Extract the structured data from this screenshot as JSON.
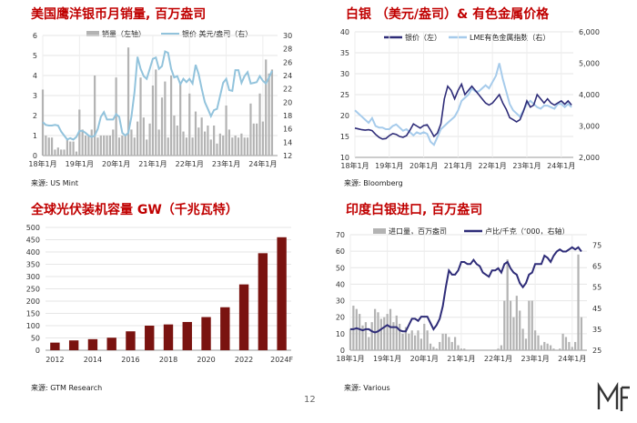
{
  "page": {
    "number": "12",
    "colors": {
      "title_red": "#c00000",
      "grey_bar": "#b3b3b3",
      "light_blue": "#92c3dc",
      "navy": "#2e2c78",
      "sky": "#a6cbeb",
      "maroon": "#7a1310"
    }
  },
  "charts": [
    {
      "id": "eagle",
      "title": "美国鹰洋银币月销量, 百万盎司",
      "source": "来源: US Mint",
      "legend": {
        "series1": "销量（左轴）",
        "series2": "银价 美元/盎司（右）"
      }
    },
    {
      "id": "silver_lme",
      "title": "白银 （美元/盎司）& 有色金属价格",
      "source": "来源: Bloomberg",
      "legend": {
        "series1": "银价（左）",
        "series2": "LME有色金属指数（右）"
      }
    },
    {
      "id": "pv",
      "title": "全球光伏装机容量 GW（千兆瓦特）",
      "source": "来源: GTM Research"
    },
    {
      "id": "india",
      "title": "印度白银进口, 百万盎司",
      "source": "来源: Various",
      "legend": {
        "series1": "进口量，百万盎司",
        "series2": "卢比/千克（‘000，右轴）"
      }
    }
  ],
  "chart_data": [
    {
      "type": "bar",
      "title": "美国鹰洋银币月销量, 百万盎司",
      "x_labels": [
        "18年1月",
        "19年1月",
        "20年1月",
        "21年1月",
        "22年1月",
        "23年1月",
        "24年1月"
      ],
      "x": [
        2018,
        2018.083,
        2018.167,
        2018.25,
        2018.333,
        2018.417,
        2018.5,
        2018.583,
        2018.667,
        2018.75,
        2018.833,
        2018.917,
        2019,
        2019.083,
        2019.167,
        2019.25,
        2019.333,
        2019.417,
        2019.5,
        2019.583,
        2019.667,
        2019.75,
        2019.833,
        2019.917,
        2020,
        2020.083,
        2020.167,
        2020.25,
        2020.333,
        2020.417,
        2020.5,
        2020.583,
        2020.667,
        2020.75,
        2020.833,
        2020.917,
        2021,
        2021.083,
        2021.167,
        2021.25,
        2021.333,
        2021.417,
        2021.5,
        2021.583,
        2021.667,
        2021.75,
        2021.833,
        2021.917,
        2022,
        2022.083,
        2022.167,
        2022.25,
        2022.333,
        2022.417,
        2022.5,
        2022.583,
        2022.667,
        2022.75,
        2022.833,
        2022.917,
        2023,
        2023.083,
        2023.167,
        2023.25,
        2023.333,
        2023.417,
        2023.5,
        2023.583,
        2023.667,
        2023.75,
        2023.833,
        2023.917,
        2024,
        2024.083,
        2024.167,
        2024.25
      ],
      "series": [
        {
          "name": "销量（左轴）",
          "type": "bar",
          "axis": "left",
          "values": [
            3.3,
            1.0,
            0.9,
            0.9,
            0.3,
            0.4,
            0.3,
            0.3,
            0.8,
            0.7,
            0.7,
            0.2,
            2.3,
            1.3,
            1.0,
            1.0,
            1.3,
            4.0,
            0.9,
            1.0,
            1.0,
            1.0,
            1.0,
            1.3,
            3.9,
            0.9,
            1.0,
            1.0,
            5.4,
            1.3,
            0.9,
            1.7,
            3.9,
            1.9,
            0.8,
            1.6,
            3.5,
            4.3,
            1.3,
            2.9,
            3.7,
            0.9,
            4.0,
            2.0,
            1.5,
            3.6,
            1.2,
            0.9,
            3.1,
            0.9,
            2.2,
            1.4,
            1.9,
            1.2,
            1.5,
            0.8,
            1.5,
            0.6,
            1.1,
            1.0,
            2.5,
            1.3,
            0.9,
            1.0,
            0.9,
            1.1,
            0.9,
            0.9,
            2.6,
            1.6,
            1.6,
            3.1,
            1.7,
            4.8,
            4.1,
            4.3
          ]
        },
        {
          "name": "银价 美元/盎司（右）",
          "type": "line",
          "axis": "right",
          "values": [
            17.0,
            16.6,
            16.5,
            16.5,
            16.6,
            16.5,
            15.6,
            15.0,
            14.4,
            14.6,
            14.4,
            14.8,
            15.7,
            15.7,
            15.4,
            15.0,
            14.8,
            15.0,
            16.0,
            17.8,
            18.5,
            17.4,
            17.4,
            17.4,
            18.2,
            17.8,
            15.4,
            15.0,
            15.4,
            17.8,
            21.5,
            26.8,
            25.0,
            23.9,
            23.5,
            25.0,
            26.5,
            26.7,
            25.0,
            25.4,
            27.6,
            27.4,
            25.0,
            23.7,
            23.9,
            22.7,
            23.5,
            23.0,
            23.5,
            22.8,
            25.6,
            24.2,
            22.0,
            20.0,
            19.0,
            17.9,
            18.8,
            19.0,
            20.9,
            22.9,
            23.5,
            21.8,
            21.7,
            24.8,
            24.8,
            22.9,
            23.9,
            24.5,
            22.8,
            22.9,
            23.0,
            23.9,
            23.2,
            22.8,
            23.7,
            24.7
          ]
        }
      ],
      "ylim_left": [
        0,
        6
      ],
      "yticks_left": [
        0,
        1,
        2,
        3,
        4,
        5,
        6
      ],
      "ylim_right": [
        12,
        30
      ],
      "yticks_right": [
        12,
        14,
        16,
        18,
        20,
        22,
        24,
        26,
        28,
        30
      ],
      "grid": true,
      "legend_position": "top"
    },
    {
      "type": "line",
      "title": "白银 （美元/盎司）& 有色金属价格",
      "x_labels": [
        "18年1月",
        "19年1月",
        "20年1月",
        "21年1月",
        "22年1月",
        "23年1月",
        "24年1月"
      ],
      "x": [
        2018,
        2018.1,
        2018.2,
        2018.3,
        2018.4,
        2018.5,
        2018.6,
        2018.7,
        2018.8,
        2018.9,
        2019,
        2019.1,
        2019.2,
        2019.3,
        2019.4,
        2019.5,
        2019.6,
        2019.7,
        2019.8,
        2019.9,
        2020,
        2020.1,
        2020.2,
        2020.3,
        2020.4,
        2020.5,
        2020.6,
        2020.7,
        2020.8,
        2020.9,
        2021,
        2021.1,
        2021.2,
        2021.3,
        2021.4,
        2021.5,
        2021.6,
        2021.7,
        2021.8,
        2021.9,
        2022,
        2022.1,
        2022.2,
        2022.3,
        2022.4,
        2022.5,
        2022.6,
        2022.7,
        2022.8,
        2022.9,
        2023,
        2023.1,
        2023.2,
        2023.3,
        2023.4,
        2023.5,
        2023.6,
        2023.7,
        2023.8,
        2023.9,
        2024,
        2024.1,
        2024.2,
        2024.3
      ],
      "series": [
        {
          "name": "银价（左）",
          "axis": "left",
          "values": [
            17.0,
            16.8,
            16.6,
            16.5,
            16.6,
            16.4,
            15.5,
            14.8,
            14.4,
            14.5,
            15.2,
            15.7,
            15.5,
            15.0,
            14.8,
            15.2,
            16.5,
            18.0,
            17.5,
            17.0,
            17.6,
            17.8,
            16.5,
            15.0,
            15.8,
            18.0,
            24.0,
            27.0,
            26.0,
            24.0,
            26.0,
            27.5,
            25.0,
            26.0,
            27.0,
            26.0,
            25.0,
            24.0,
            23.0,
            22.5,
            23.0,
            24.0,
            25.0,
            23.0,
            21.5,
            19.5,
            19.0,
            18.5,
            19.0,
            21.0,
            23.5,
            22.0,
            22.5,
            25.0,
            24.0,
            23.0,
            24.0,
            23.0,
            22.5,
            23.0,
            23.5,
            22.7,
            23.5,
            22.5
          ]
        },
        {
          "name": "LME有色金属指数（右）",
          "axis": "right",
          "values": [
            3500,
            3400,
            3300,
            3200,
            3100,
            3250,
            3000,
            2950,
            2950,
            2900,
            2900,
            3000,
            3050,
            2950,
            2850,
            2900,
            2800,
            2700,
            2800,
            2750,
            2800,
            2750,
            2500,
            2400,
            2650,
            2900,
            3000,
            3100,
            3200,
            3300,
            3500,
            3800,
            3900,
            4000,
            4200,
            4100,
            4100,
            4200,
            4300,
            4200,
            4400,
            4600,
            5000,
            4500,
            4100,
            3700,
            3500,
            3400,
            3300,
            3500,
            3700,
            3800,
            3700,
            3600,
            3550,
            3650,
            3650,
            3600,
            3550,
            3700,
            3700,
            3600,
            3700,
            3600
          ]
        }
      ],
      "ylim_left": [
        10,
        40
      ],
      "yticks_left": [
        10,
        15,
        20,
        25,
        30,
        35,
        40
      ],
      "ylim_right": [
        2000,
        6000
      ],
      "yticks_right": [
        "2,000",
        "3,000",
        "4,000",
        "5,000",
        "6,000"
      ],
      "grid": true,
      "legend_position": "top"
    },
    {
      "type": "bar",
      "title": "全球光伏装机容量 GW（千兆瓦特）",
      "categories": [
        "2012",
        "2013",
        "2014",
        "2015",
        "2016",
        "2017",
        "2018",
        "2019",
        "2020",
        "2021",
        "2022",
        "2023",
        "2024F"
      ],
      "x_labels": [
        "2012",
        "2014",
        "2016",
        "2018",
        "2020",
        "2022",
        "2024F"
      ],
      "values": [
        31,
        40,
        45,
        51,
        77,
        100,
        105,
        115,
        135,
        175,
        268,
        395,
        460
      ],
      "ylim": [
        0,
        500
      ],
      "yticks": [
        0,
        50,
        100,
        150,
        200,
        250,
        300,
        350,
        400,
        450,
        500
      ],
      "grid": true
    },
    {
      "type": "bar",
      "title": "印度白银进口, 百万盎司",
      "x_labels": [
        "18年1月",
        "19年1月",
        "20年1月",
        "21年1月",
        "22年1月",
        "23年1月",
        "24年1月"
      ],
      "x": [
        2018,
        2018.083,
        2018.167,
        2018.25,
        2018.333,
        2018.417,
        2018.5,
        2018.583,
        2018.667,
        2018.75,
        2018.833,
        2018.917,
        2019,
        2019.083,
        2019.167,
        2019.25,
        2019.333,
        2019.417,
        2019.5,
        2019.583,
        2019.667,
        2019.75,
        2019.833,
        2019.917,
        2020,
        2020.083,
        2020.167,
        2020.25,
        2020.333,
        2020.417,
        2020.5,
        2020.583,
        2020.667,
        2020.75,
        2020.833,
        2020.917,
        2021,
        2021.083,
        2021.167,
        2021.25,
        2021.333,
        2021.417,
        2021.5,
        2021.583,
        2021.667,
        2021.75,
        2021.833,
        2021.917,
        2022,
        2022.083,
        2022.167,
        2022.25,
        2022.333,
        2022.417,
        2022.5,
        2022.583,
        2022.667,
        2022.75,
        2022.833,
        2022.917,
        2023,
        2023.083,
        2023.167,
        2023.25,
        2023.333,
        2023.417,
        2023.5,
        2023.583,
        2023.667,
        2023.75,
        2023.833,
        2023.917,
        2024,
        2024.083,
        2024.167,
        2024.25
      ],
      "series": [
        {
          "name": "进口量，百万盎司",
          "type": "bar",
          "axis": "left",
          "values": [
            13,
            27,
            25,
            22,
            15,
            17,
            8,
            17,
            25,
            23,
            19,
            20,
            22,
            25,
            17,
            21,
            16,
            10,
            14,
            10,
            12,
            9,
            12,
            7,
            16,
            12,
            4,
            2,
            1,
            5,
            10,
            10,
            8,
            5,
            8,
            3,
            1,
            1,
            0,
            0,
            0,
            0,
            0,
            0,
            0,
            0,
            0,
            0,
            1,
            3,
            30,
            55,
            30,
            20,
            33,
            24,
            13,
            7,
            30,
            30,
            12,
            9,
            3,
            5,
            4,
            3,
            1,
            0,
            1,
            10,
            8,
            5,
            2,
            5,
            58,
            20
          ]
        },
        {
          "name": "卢比/千克（‘000，右轴）",
          "type": "line",
          "axis": "right",
          "values": [
            35,
            35,
            35.5,
            35,
            34.5,
            35,
            35,
            34,
            33.5,
            34,
            35,
            36,
            37,
            36,
            36,
            36,
            34.5,
            34,
            34,
            37,
            40,
            40,
            39,
            41,
            41,
            41,
            38,
            35,
            37,
            40,
            46,
            55,
            63,
            61,
            61,
            63,
            67,
            67,
            66,
            66,
            68,
            66,
            65,
            62,
            61,
            60,
            63,
            63,
            64,
            62,
            66,
            67,
            64,
            62,
            61,
            57,
            55,
            57,
            61,
            62,
            66,
            66,
            66,
            70,
            69,
            67,
            70,
            72,
            73,
            72,
            72,
            73,
            74,
            73,
            74,
            72
          ]
        }
      ],
      "ylim_left": [
        0,
        70
      ],
      "yticks_left": [
        0,
        10,
        20,
        30,
        40,
        50,
        60,
        70
      ],
      "ylim_right": [
        25,
        80
      ],
      "yticks_right": [
        25,
        35,
        45,
        55,
        65,
        75
      ],
      "grid": true,
      "legend_position": "top"
    }
  ]
}
